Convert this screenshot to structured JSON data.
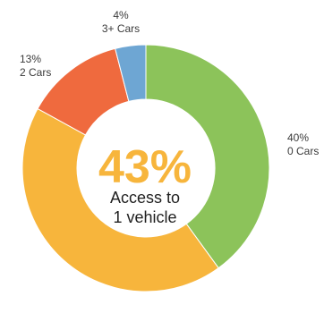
{
  "chart_data": {
    "type": "pie",
    "variant": "donut",
    "slices": [
      {
        "category": "0 Cars",
        "value": 40,
        "value_label": "40%",
        "color": "#8cc35a"
      },
      {
        "category": "1 Car",
        "value": 43,
        "value_label": "",
        "color": "#f7b53c"
      },
      {
        "category": "2 Cars",
        "value": 13,
        "value_label": "13%",
        "color": "#ef6a3e"
      },
      {
        "category": "3+ Cars",
        "value": 4,
        "value_label": "4%",
        "color": "#6ea6d3"
      }
    ],
    "center": {
      "value_label": "43%",
      "line1": "Access to",
      "line2": "1 vehicle"
    },
    "start_angle_deg": 0,
    "direction": "clockwise",
    "legend": "none"
  }
}
